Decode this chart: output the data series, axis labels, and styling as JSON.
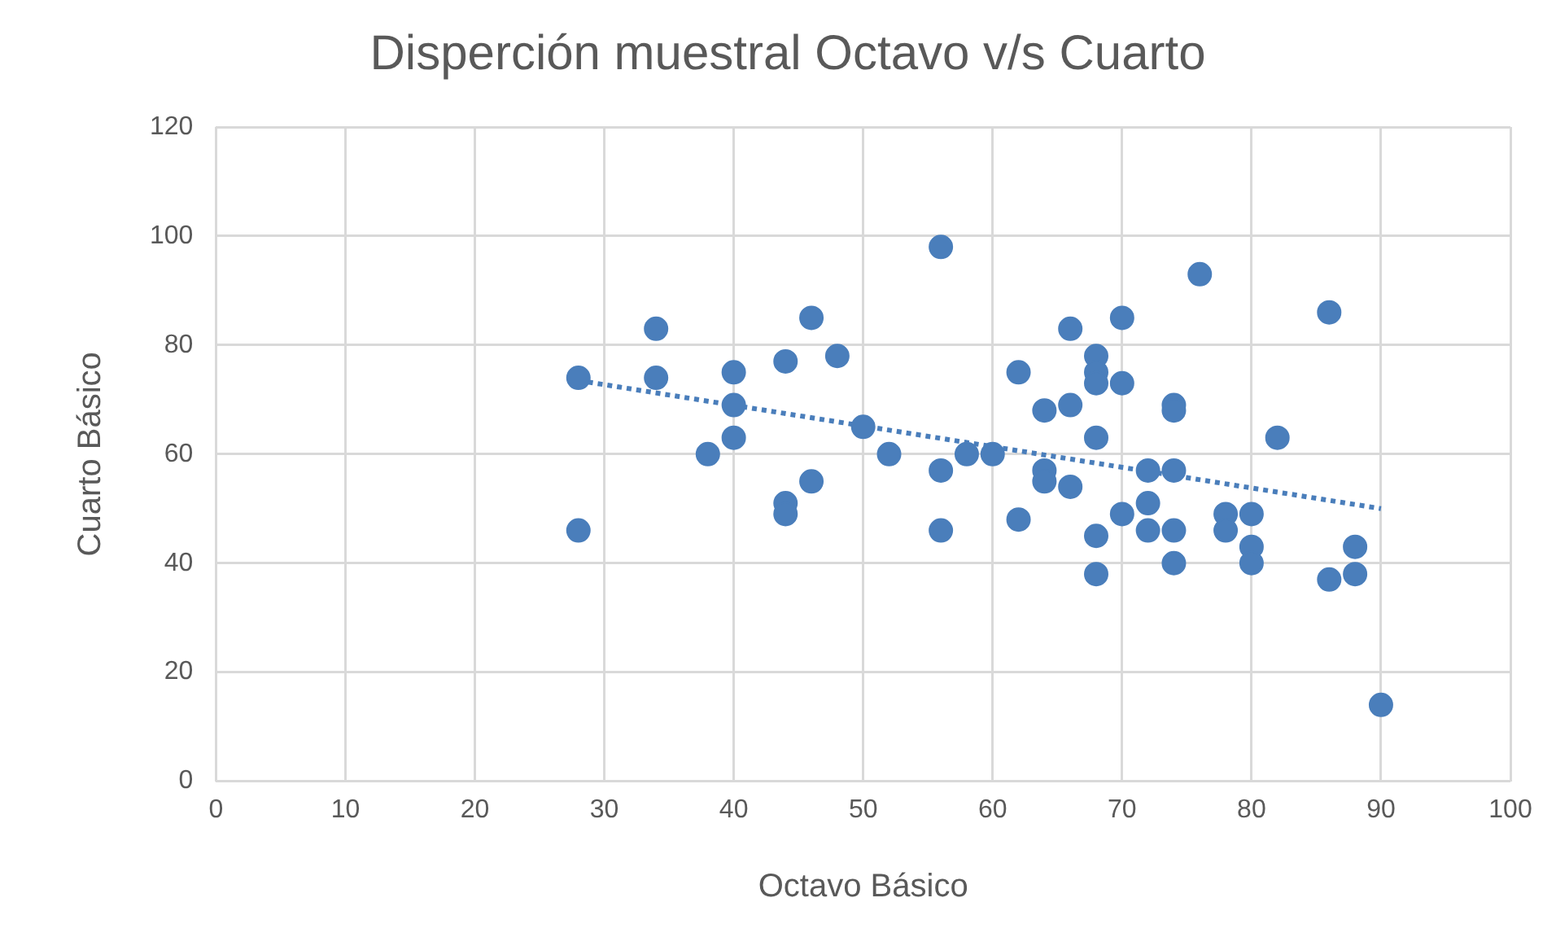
{
  "chart_data": {
    "type": "scatter",
    "title": "Disperción muestral Octavo v/s Cuarto",
    "xlabel": "Octavo Básico",
    "ylabel": "Cuarto Básico",
    "xlim": [
      0,
      100
    ],
    "xticks": [
      0,
      10,
      20,
      30,
      40,
      50,
      60,
      70,
      80,
      90,
      100
    ],
    "ylim": [
      0,
      120
    ],
    "yticks": [
      0,
      20,
      40,
      60,
      80,
      100,
      120
    ],
    "grid": true,
    "series": [
      {
        "type": "scatter",
        "marker": "circle",
        "color": "#4a7ebb",
        "x": [
          28,
          28,
          34,
          34,
          38,
          40,
          40,
          40,
          44,
          44,
          44,
          46,
          46,
          48,
          50,
          52,
          56,
          56,
          56,
          58,
          60,
          62,
          62,
          64,
          64,
          64,
          66,
          66,
          66,
          68,
          68,
          68,
          68,
          68,
          68,
          70,
          70,
          70,
          72,
          72,
          72,
          74,
          74,
          74,
          74,
          74,
          76,
          78,
          78,
          80,
          80,
          80,
          82,
          86,
          86,
          88,
          88,
          90
        ],
        "values": [
          74,
          46,
          83,
          74,
          60,
          75,
          69,
          63,
          77,
          51,
          49,
          85,
          55,
          78,
          65,
          60,
          98,
          57,
          46,
          60,
          60,
          75,
          48,
          68,
          57,
          55,
          83,
          69,
          54,
          78,
          75,
          73,
          63,
          45,
          38,
          85,
          73,
          49,
          57,
          51,
          46,
          69,
          68,
          57,
          46,
          40,
          93,
          49,
          46,
          49,
          43,
          40,
          63,
          86,
          37,
          43,
          38,
          14
        ]
      },
      {
        "type": "line",
        "marker": "none",
        "color": "#4a7ebb",
        "line_style": "dotted",
        "x": [
          28,
          90
        ],
        "values": [
          73.5,
          50
        ]
      }
    ]
  }
}
